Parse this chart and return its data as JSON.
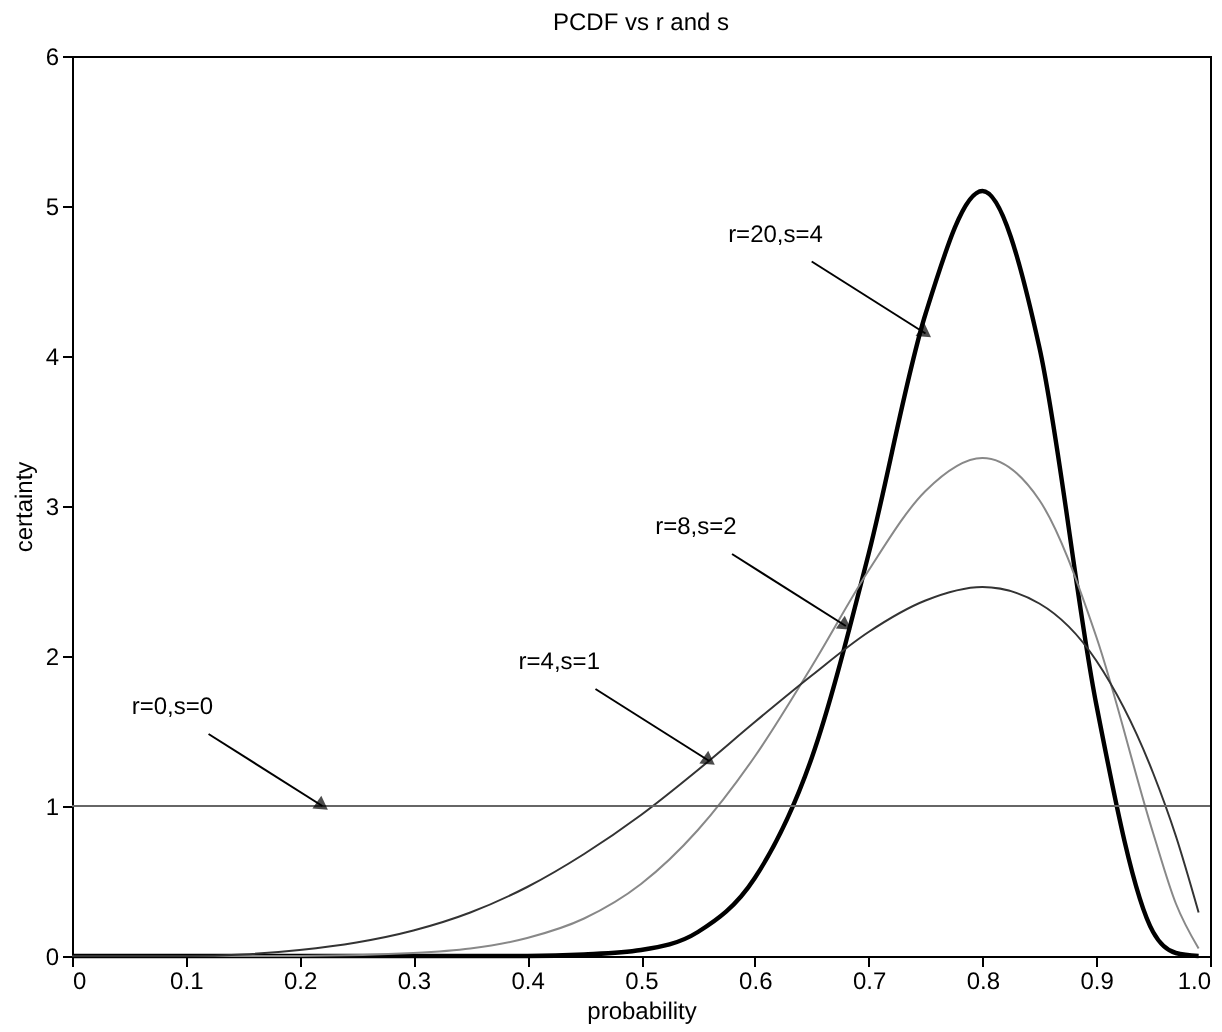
{
  "chart_data": {
    "type": "line",
    "title": "PCDF vs r and s",
    "xlabel": "probability",
    "ylabel": "certainty",
    "xlim": [
      0,
      1
    ],
    "ylim": [
      0,
      6
    ],
    "xticks": [
      0,
      0.1,
      0.2,
      0.3,
      0.4,
      0.5,
      0.6,
      0.7,
      0.8,
      0.9,
      {
        "value": 1,
        "label": "1.0"
      }
    ],
    "yticks": [
      0,
      1,
      2,
      3,
      4,
      5,
      6
    ],
    "line_style": "solid",
    "series": [
      {
        "color": "#000000",
        "x": [
          0,
          0.4,
          0.45,
          0.5,
          0.55,
          0.6,
          0.65,
          0.7,
          0.75,
          0.8,
          0.85,
          0.9,
          0.95,
          0.97,
          0.99
        ],
        "values": [
          0,
          0,
          0.01,
          0.04,
          0.16,
          0.52,
          1.32,
          2.68,
          4.28,
          5.1,
          4.06,
          1.68,
          0.16,
          0.02,
          0
        ]
      },
      {
        "color": "#888888",
        "x": [
          0,
          0.2,
          0.3,
          0.35,
          0.4,
          0.45,
          0.5,
          0.55,
          0.6,
          0.65,
          0.7,
          0.75,
          0.8,
          0.85,
          0.9,
          0.95,
          0.97,
          0.99
        ],
        "values": [
          0,
          0,
          0.02,
          0.05,
          0.12,
          0.25,
          0.48,
          0.84,
          1.33,
          1.93,
          2.57,
          3.1,
          3.32,
          3.04,
          2.13,
          0.82,
          0.35,
          0.05
        ]
      },
      {
        "color": "#333333",
        "x": [
          0,
          0.1,
          0.15,
          0.2,
          0.25,
          0.3,
          0.35,
          0.4,
          0.45,
          0.5,
          0.55,
          0.6,
          0.65,
          0.7,
          0.75,
          0.8,
          0.85,
          0.9,
          0.95,
          0.97,
          0.99
        ],
        "values": [
          0,
          0,
          0.01,
          0.04,
          0.09,
          0.17,
          0.29,
          0.46,
          0.68,
          0.94,
          1.24,
          1.56,
          1.87,
          2.16,
          2.37,
          2.46,
          2.35,
          1.97,
          1.22,
          0.8,
          0.29
        ]
      },
      {
        "color": "#666666",
        "x": [
          0,
          1
        ],
        "values": [
          1,
          1
        ]
      }
    ],
    "annotations": [
      {
        "text": "r=20,s=4",
        "x": 0.75,
        "y": 4.15
      },
      {
        "text": "r=8,s=2",
        "x": 0.68,
        "y": 2.2
      },
      {
        "text": "r=4,s=1",
        "x": 0.56,
        "y": 1.3
      },
      {
        "text": "r=0,s=0",
        "x": 0.22,
        "y": 1.0
      }
    ]
  }
}
